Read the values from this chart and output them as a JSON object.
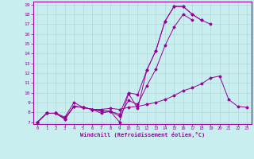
{
  "bg_color": "#c8eef0",
  "line_color": "#990099",
  "grid_color": "#b0d0d8",
  "xlabel": "Windchill (Refroidissement éolien,°C)",
  "xlabel_color": "#990099",
  "xtick_color": "#990099",
  "ytick_color": "#990099",
  "spine_color": "#990099",
  "xmin": 0,
  "xmax": 23,
  "ymin": 7,
  "ymax": 19,
  "line1_x": [
    0,
    1,
    2,
    3,
    4,
    5,
    6,
    7,
    8,
    9,
    10,
    11,
    12,
    13,
    14,
    15,
    16,
    17,
    18,
    19
  ],
  "line1_y": [
    7.0,
    7.9,
    7.9,
    7.3,
    8.6,
    8.5,
    8.3,
    7.9,
    8.1,
    7.0,
    9.9,
    8.4,
    12.3,
    14.3,
    17.3,
    18.8,
    18.8,
    18.0,
    17.4,
    17.0
  ],
  "line2_x": [
    0,
    1,
    2,
    3,
    4,
    5,
    6,
    7,
    8,
    9,
    10,
    11,
    12,
    13,
    14,
    15,
    16,
    17,
    18,
    19,
    20,
    21,
    22,
    23
  ],
  "line2_y": [
    7.0,
    7.9,
    7.9,
    7.3,
    8.6,
    8.5,
    8.3,
    8.3,
    8.4,
    8.3,
    8.5,
    8.6,
    8.8,
    9.0,
    9.3,
    9.7,
    10.2,
    10.5,
    10.9,
    11.5,
    11.7,
    9.3,
    8.6,
    8.5
  ],
  "line3_x": [
    0,
    1,
    2,
    3,
    4,
    5,
    6,
    7,
    8,
    9,
    10,
    11,
    12,
    13,
    14,
    15,
    16,
    17,
    18
  ],
  "line3_y": [
    7.0,
    7.9,
    7.9,
    7.5,
    9.0,
    8.5,
    8.3,
    8.1,
    8.1,
    7.8,
    10.0,
    9.8,
    12.3,
    14.3,
    17.3,
    18.8,
    18.8,
    18.0,
    17.4
  ],
  "line4_x": [
    0,
    1,
    2,
    3,
    4,
    5,
    6,
    7,
    8,
    9,
    10,
    11,
    12,
    13,
    14,
    15,
    16,
    17
  ],
  "line4_y": [
    7.0,
    7.9,
    7.9,
    7.4,
    8.6,
    8.5,
    8.3,
    8.2,
    8.1,
    7.6,
    9.2,
    8.8,
    10.7,
    12.4,
    14.8,
    16.7,
    18.0,
    17.4
  ]
}
